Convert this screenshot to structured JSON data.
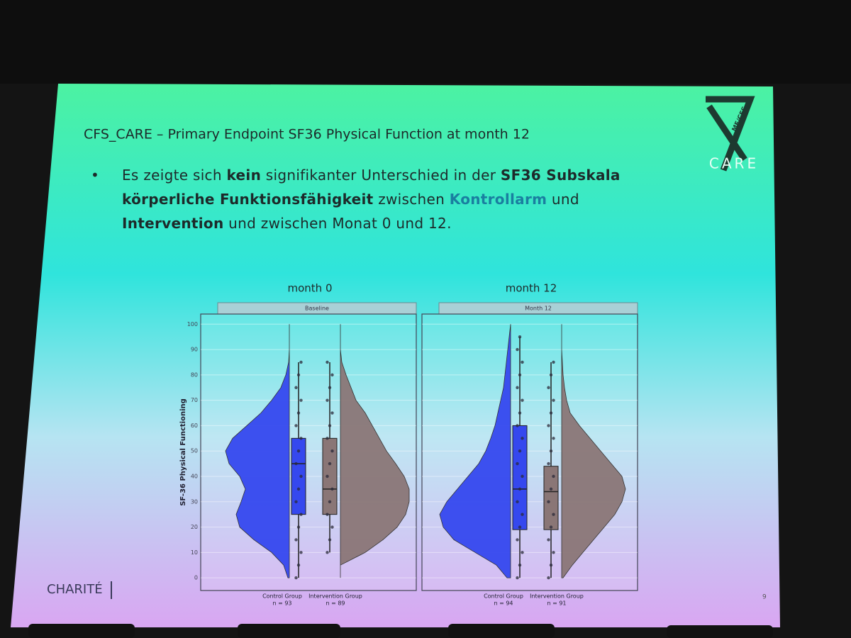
{
  "header": {
    "title": "CFS_CARE – Primary Endpoint SF36 Physical Function at month 12"
  },
  "bullet": {
    "runs": [
      {
        "text": "Es zeigte sich ",
        "style": "normal"
      },
      {
        "text": "kein",
        "style": "bold"
      },
      {
        "text": " signifikanter Unterschied in der ",
        "style": "normal"
      },
      {
        "text": "SF36 Subskala körperliche Funktionsfähigkeit",
        "style": "bold"
      },
      {
        "text": " zwischen ",
        "style": "normal"
      },
      {
        "text": "Kontrollarm",
        "style": "teal"
      },
      {
        "text": " und ",
        "style": "normal"
      },
      {
        "text": "Intervention",
        "style": "bold"
      },
      {
        "text": " und zwischen Monat 0 und 12.",
        "style": "normal"
      }
    ]
  },
  "logo": {
    "top": "ME/CFS",
    "bottom": "CARE"
  },
  "footer": {
    "brand": "CHARITÉ",
    "page": "9"
  },
  "chart_data": [
    {
      "type": "raincloud",
      "title": "month 0",
      "panel_label": "Baseline",
      "ylabel": "SF-36 Physical Functioning",
      "ylim": [
        -5,
        104
      ],
      "yticks": [
        0,
        10,
        20,
        30,
        40,
        50,
        60,
        70,
        80,
        90,
        100
      ],
      "grid": true,
      "density_y": [
        0,
        5,
        10,
        15,
        20,
        25,
        30,
        35,
        40,
        45,
        50,
        55,
        60,
        65,
        70,
        75,
        80,
        85,
        90,
        95,
        100
      ],
      "series": [
        {
          "name": "Control Group",
          "n_label": "n = 93",
          "color": "#3548ee",
          "side": "left",
          "low": 0,
          "q1": 25,
          "median": 45,
          "q3": 55,
          "high": 85,
          "points": [
            0,
            5,
            10,
            15,
            20,
            25,
            30,
            35,
            40,
            45,
            50,
            55,
            60,
            65,
            70,
            75,
            80,
            85
          ],
          "density": [
            0.02,
            0.08,
            0.25,
            0.5,
            0.7,
            0.75,
            0.68,
            0.62,
            0.7,
            0.85,
            0.9,
            0.8,
            0.6,
            0.4,
            0.25,
            0.12,
            0.05,
            0.01,
            0,
            0,
            0
          ]
        },
        {
          "name": "Intervention Group",
          "n_label": "n = 89",
          "color": "#8a7676",
          "side": "right",
          "low": 10,
          "q1": 25,
          "median": 35,
          "q3": 55,
          "high": 85,
          "points": [
            10,
            15,
            20,
            25,
            30,
            35,
            40,
            45,
            50,
            55,
            60,
            65,
            70,
            75,
            80,
            85
          ],
          "density": [
            0,
            0,
            0.35,
            0.6,
            0.8,
            0.92,
            0.97,
            0.97,
            0.9,
            0.78,
            0.65,
            0.55,
            0.45,
            0.35,
            0.22,
            0.15,
            0.08,
            0.02,
            0,
            0,
            0
          ]
        }
      ]
    },
    {
      "type": "raincloud",
      "title": "month 12",
      "panel_label": "Month 12",
      "ylabel": "SF-36 Physical Functioning",
      "ylim": [
        -5,
        104
      ],
      "yticks": [
        0,
        10,
        20,
        30,
        40,
        50,
        60,
        70,
        80,
        90,
        100
      ],
      "grid": true,
      "density_y": [
        0,
        5,
        10,
        15,
        20,
        25,
        30,
        35,
        40,
        45,
        50,
        55,
        60,
        65,
        70,
        75,
        80,
        85,
        90,
        95,
        100
      ],
      "series": [
        {
          "name": "Control Group",
          "n_label": "n = 94",
          "color": "#3548ee",
          "side": "left",
          "low": 0,
          "q1": 19,
          "median": 35,
          "q3": 60,
          "high": 95,
          "points": [
            0,
            5,
            10,
            15,
            20,
            25,
            30,
            35,
            40,
            45,
            50,
            55,
            60,
            65,
            70,
            75,
            80,
            85,
            90,
            95
          ],
          "density": [
            0.05,
            0.2,
            0.5,
            0.8,
            0.95,
            1.0,
            0.9,
            0.75,
            0.6,
            0.45,
            0.35,
            0.28,
            0.22,
            0.18,
            0.14,
            0.1,
            0.08,
            0.06,
            0.04,
            0.02,
            0
          ]
        },
        {
          "name": "Intervention Group",
          "n_label": "n = 91",
          "color": "#8a7676",
          "side": "right",
          "low": 0,
          "q1": 19,
          "median": 34,
          "q3": 44,
          "high": 85,
          "points": [
            0,
            5,
            10,
            15,
            20,
            25,
            30,
            35,
            40,
            45,
            50,
            55,
            60,
            65,
            70,
            75,
            80,
            85
          ],
          "density": [
            0.02,
            0.15,
            0.3,
            0.45,
            0.6,
            0.75,
            0.85,
            0.9,
            0.85,
            0.7,
            0.55,
            0.4,
            0.25,
            0.12,
            0.07,
            0.04,
            0.02,
            0.01,
            0,
            0,
            0
          ]
        }
      ]
    }
  ]
}
